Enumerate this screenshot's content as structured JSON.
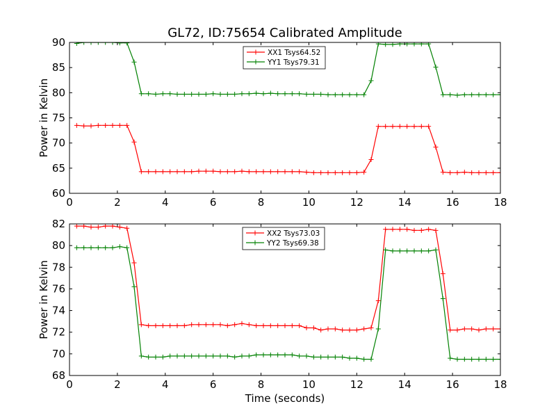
{
  "title": "GL72, ID:75654 Calibrated Amplitude",
  "xlabel": "Time (seconds)",
  "colors": {
    "red": "#ff0000",
    "green": "#008000"
  },
  "chart_data": [
    {
      "type": "line",
      "ylabel": "Power in Kelvin",
      "xlim": [
        0,
        18
      ],
      "ylim": [
        60,
        90
      ],
      "xticks": [
        0,
        2,
        4,
        6,
        8,
        10,
        12,
        14,
        16,
        18
      ],
      "yticks": [
        60,
        65,
        70,
        75,
        80,
        85,
        90
      ],
      "legend_position": "top-center",
      "x": [
        0.3,
        0.6,
        0.9,
        1.2,
        1.5,
        1.8,
        2.1,
        2.4,
        2.7,
        3.0,
        3.3,
        3.6,
        3.9,
        4.2,
        4.5,
        4.8,
        5.1,
        5.4,
        5.7,
        6.0,
        6.3,
        6.6,
        6.9,
        7.2,
        7.5,
        7.8,
        8.1,
        8.4,
        8.7,
        9.0,
        9.3,
        9.6,
        9.9,
        10.2,
        10.5,
        10.8,
        11.1,
        11.4,
        11.7,
        12.0,
        12.3,
        12.6,
        12.9,
        13.2,
        13.5,
        13.8,
        14.1,
        14.4,
        14.7,
        15.0,
        15.3,
        15.6,
        15.9,
        16.2,
        16.5,
        16.8,
        17.1,
        17.4,
        17.7,
        18.0
      ],
      "series": [
        {
          "name": "XX1 Tsys64.52",
          "color": "#ff0000",
          "values": [
            73.5,
            73.4,
            73.4,
            73.5,
            73.5,
            73.5,
            73.5,
            73.5,
            70.2,
            64.3,
            64.3,
            64.3,
            64.3,
            64.3,
            64.3,
            64.3,
            64.3,
            64.4,
            64.4,
            64.4,
            64.3,
            64.3,
            64.3,
            64.4,
            64.3,
            64.3,
            64.3,
            64.3,
            64.3,
            64.3,
            64.3,
            64.3,
            64.2,
            64.1,
            64.1,
            64.1,
            64.1,
            64.1,
            64.1,
            64.1,
            64.2,
            66.7,
            73.3,
            73.3,
            73.3,
            73.3,
            73.3,
            73.3,
            73.3,
            73.3,
            69.2,
            64.2,
            64.1,
            64.1,
            64.2,
            64.1,
            64.1,
            64.1,
            64.1,
            64.1
          ]
        },
        {
          "name": "YY1 Tsys79.31",
          "color": "#008000",
          "values": [
            89.8,
            90.0,
            90.0,
            90.0,
            90.0,
            90.0,
            89.9,
            89.9,
            86.1,
            79.8,
            79.8,
            79.7,
            79.8,
            79.8,
            79.7,
            79.7,
            79.7,
            79.7,
            79.7,
            79.8,
            79.7,
            79.7,
            79.7,
            79.8,
            79.8,
            79.9,
            79.8,
            79.9,
            79.8,
            79.8,
            79.8,
            79.8,
            79.7,
            79.7,
            79.7,
            79.6,
            79.6,
            79.6,
            79.6,
            79.6,
            79.6,
            82.4,
            89.7,
            89.6,
            89.6,
            89.7,
            89.7,
            89.7,
            89.7,
            89.7,
            85.1,
            79.6,
            79.6,
            79.5,
            79.6,
            79.6,
            79.6,
            79.6,
            79.6,
            79.6
          ]
        }
      ]
    },
    {
      "type": "line",
      "ylabel": "Power in Kelvin",
      "xlim": [
        0,
        18
      ],
      "ylim": [
        68,
        82
      ],
      "xticks": [
        0,
        2,
        4,
        6,
        8,
        10,
        12,
        14,
        16,
        18
      ],
      "yticks": [
        68,
        70,
        72,
        74,
        76,
        78,
        80,
        82
      ],
      "legend_position": "top-center",
      "x": [
        0.3,
        0.6,
        0.9,
        1.2,
        1.5,
        1.8,
        2.1,
        2.4,
        2.7,
        3.0,
        3.3,
        3.6,
        3.9,
        4.2,
        4.5,
        4.8,
        5.1,
        5.4,
        5.7,
        6.0,
        6.3,
        6.6,
        6.9,
        7.2,
        7.5,
        7.8,
        8.1,
        8.4,
        8.7,
        9.0,
        9.3,
        9.6,
        9.9,
        10.2,
        10.5,
        10.8,
        11.1,
        11.4,
        11.7,
        12.0,
        12.3,
        12.6,
        12.9,
        13.2,
        13.5,
        13.8,
        14.1,
        14.4,
        14.7,
        15.0,
        15.3,
        15.6,
        15.9,
        16.2,
        16.5,
        16.8,
        17.1,
        17.4,
        17.7,
        18.0
      ],
      "series": [
        {
          "name": "XX2 Tsys73.03",
          "color": "#ff0000",
          "values": [
            81.8,
            81.8,
            81.7,
            81.7,
            81.8,
            81.8,
            81.7,
            81.6,
            78.4,
            72.7,
            72.6,
            72.6,
            72.6,
            72.6,
            72.6,
            72.6,
            72.7,
            72.7,
            72.7,
            72.7,
            72.7,
            72.6,
            72.7,
            72.8,
            72.7,
            72.6,
            72.6,
            72.6,
            72.6,
            72.6,
            72.6,
            72.6,
            72.4,
            72.4,
            72.2,
            72.3,
            72.3,
            72.2,
            72.2,
            72.2,
            72.3,
            72.4,
            74.9,
            81.5,
            81.5,
            81.5,
            81.5,
            81.4,
            81.4,
            81.5,
            81.4,
            77.4,
            72.2,
            72.2,
            72.3,
            72.3,
            72.2,
            72.3,
            72.3,
            72.3
          ]
        },
        {
          "name": "YY2 Tsys69.38",
          "color": "#008000",
          "values": [
            79.8,
            79.8,
            79.8,
            79.8,
            79.8,
            79.8,
            79.9,
            79.8,
            76.2,
            69.8,
            69.7,
            69.7,
            69.7,
            69.8,
            69.8,
            69.8,
            69.8,
            69.8,
            69.8,
            69.8,
            69.8,
            69.8,
            69.7,
            69.8,
            69.8,
            69.9,
            69.9,
            69.9,
            69.9,
            69.9,
            69.9,
            69.8,
            69.8,
            69.7,
            69.7,
            69.7,
            69.7,
            69.7,
            69.6,
            69.6,
            69.5,
            69.5,
            72.3,
            79.6,
            79.5,
            79.5,
            79.5,
            79.5,
            79.5,
            79.5,
            79.6,
            75.1,
            69.6,
            69.5,
            69.5,
            69.5,
            69.5,
            69.5,
            69.5,
            69.5
          ]
        }
      ]
    }
  ]
}
